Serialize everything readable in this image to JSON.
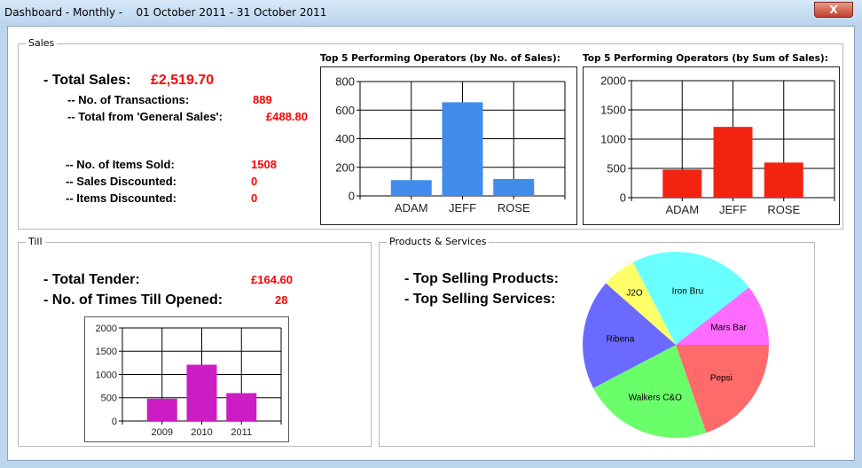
{
  "window": {
    "title": "Dashboard - Monthly -    01 October 2011 - 31 October 2011",
    "close_label": "X"
  },
  "sales": {
    "group_label": "Sales",
    "total_sales_label": "- Total Sales:",
    "total_sales_value": "£2,519.70",
    "transactions_label": "-- No. of Transactions:",
    "transactions_value": "889",
    "general_sales_label": "-- Total from 'General Sales':",
    "general_sales_value": "£488.80",
    "items_sold_label": "-- No. of Items Sold:",
    "items_sold_value": "1508",
    "sales_discounted_label": "-- Sales Discounted:",
    "sales_discounted_value": "0",
    "items_discounted_label": "-- Items Discounted:",
    "items_discounted_value": "0"
  },
  "till": {
    "group_label": "Till",
    "total_tender_label": "- Total Tender:",
    "total_tender_value": "£164.60",
    "till_opened_label": "- No. of Times Till Opened:",
    "till_opened_value": "28"
  },
  "products": {
    "group_label": "Products & Services",
    "top_products_label": "- Top Selling Products:",
    "top_services_label": "- Top Selling Services:"
  },
  "chart_data": [
    {
      "id": "ops_count",
      "type": "bar",
      "title": "Top 5 Performing Operators (by No. of Sales):",
      "categories": [
        "ADAM",
        "JEFF",
        "ROSE"
      ],
      "values": [
        110,
        655,
        118
      ],
      "ylim": [
        0,
        800
      ],
      "yticks": [
        0,
        200,
        400,
        600,
        800
      ],
      "color": "#418bec",
      "grid": true
    },
    {
      "id": "ops_sum",
      "type": "bar",
      "title": "Top 5 Performing Operators (by Sum of Sales):",
      "categories": [
        "ADAM",
        "JEFF",
        "ROSE"
      ],
      "values": [
        480,
        1210,
        600
      ],
      "ylim": [
        0,
        2000
      ],
      "yticks": [
        0,
        500,
        1000,
        1500,
        2000
      ],
      "color": "#f32312",
      "grid": true
    },
    {
      "id": "till_years",
      "type": "bar",
      "title": "",
      "categories": [
        "2009",
        "2010",
        "2011"
      ],
      "values": [
        480,
        1210,
        600
      ],
      "ylim": [
        0,
        2000
      ],
      "yticks": [
        0,
        500,
        1000,
        1500,
        2000
      ],
      "color": "#cc1cc4",
      "grid": true
    },
    {
      "id": "products_pie",
      "type": "pie",
      "labels": [
        "Pepsi",
        "Walkers C&O",
        "Ribena",
        "J2O",
        "Iron Bru",
        "Mars Bar"
      ],
      "values": [
        19.7,
        22.6,
        19.2,
        5.9,
        22.0,
        10.6
      ],
      "colors": [
        "#ff6a6a",
        "#6aff6a",
        "#6a6aff",
        "#ffff6a",
        "#6affff",
        "#ff6aff"
      ]
    }
  ]
}
